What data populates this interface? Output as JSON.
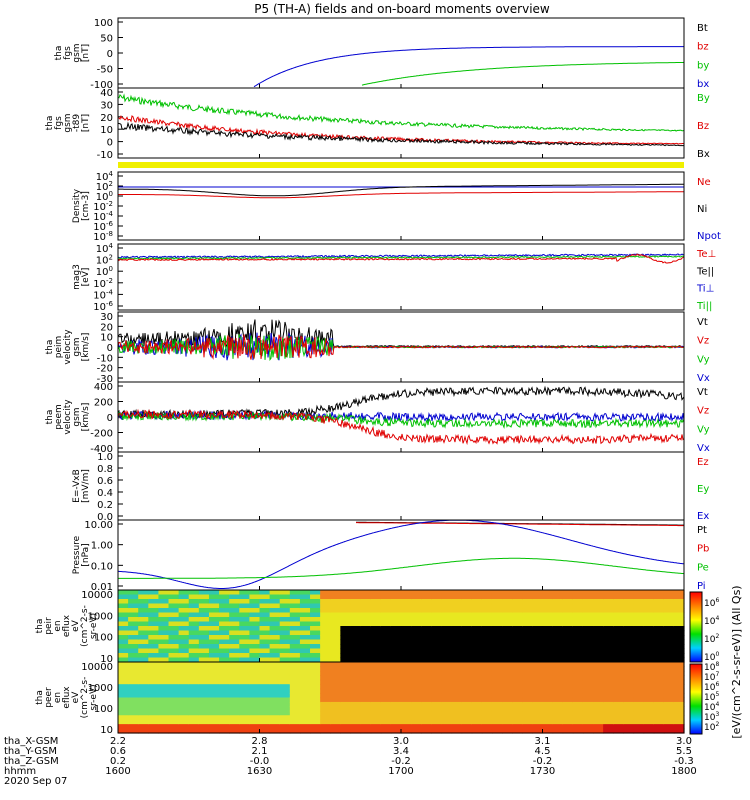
{
  "title": "P5 (TH-A) fields and on-board moments overview",
  "colorbar": {
    "label": "[eV/(cm^2-s-sr-eV)] (All Qs)",
    "ticks_top": [
      "10^6",
      "10^4",
      "10^2",
      "10^0"
    ],
    "ticks_bottom": [
      "10^8",
      "10^7",
      "10^6",
      "10^5",
      "10^4",
      "10^3",
      "10^2"
    ]
  },
  "chart_data": {
    "type": "line",
    "x_ticks": [
      "1600",
      "1630",
      "1700",
      "1730",
      "1800"
    ],
    "footer_rows": [
      {
        "label": "tha_X-GSM",
        "values": [
          "2.2",
          "2.8",
          "3.0",
          "3.1",
          "3.0"
        ]
      },
      {
        "label": "tha_Y-GSM",
        "values": [
          "0.6",
          "2.1",
          "3.4",
          "4.5",
          "5.5"
        ]
      },
      {
        "label": "tha_Z-GSM",
        "values": [
          "0.2",
          "-0.0",
          "-0.2",
          "-0.2",
          "-0.3"
        ]
      },
      {
        "label": "hhmm",
        "values": [
          "",
          "",
          "",
          "",
          ""
        ]
      }
    ],
    "date": "2020 Sep 07",
    "panels": [
      {
        "ylabel": [
          "tha",
          "fgs",
          "gsm",
          "[nT]"
        ],
        "yticks": [
          "100",
          "50",
          "0",
          "-50",
          "-100"
        ],
        "legend": [
          {
            "name": "Bt",
            "color": "#000000"
          },
          {
            "name": "bz",
            "color": "#e00000"
          },
          {
            "name": "by",
            "color": "#00c000"
          },
          {
            "name": "bx",
            "color": "#0000d0"
          }
        ]
      },
      {
        "ylabel": [
          "tha",
          "fgs",
          "gsm",
          "-t89",
          "[nT]"
        ],
        "yticks": [
          "40",
          "30",
          "20",
          "10",
          "0",
          "-10"
        ],
        "legend": [
          {
            "name": "By",
            "color": "#00c000"
          },
          {
            "name": "Bz",
            "color": "#e00000"
          },
          {
            "name": "Bx",
            "color": "#000000"
          }
        ]
      },
      {
        "ylabel": [
          "Density",
          "[cm-3]"
        ],
        "yticks": [
          "10^4",
          "10^2",
          "10^0",
          "10^-2",
          "10^-4",
          "10^-6",
          "10^-8"
        ],
        "legend": [
          {
            "name": "Ne",
            "color": "#e00000"
          },
          {
            "name": "Ni",
            "color": "#000000"
          },
          {
            "name": "Npot",
            "color": "#0000d0"
          }
        ]
      },
      {
        "ylabel": [
          "mag3",
          "[eV]"
        ],
        "yticks": [
          "10^4",
          "10^2",
          "10^0",
          "10^-2",
          "10^-4",
          "10^-6"
        ],
        "legend": [
          {
            "name": "Te⊥",
            "color": "#e00000"
          },
          {
            "name": "Te||",
            "color": "#000000"
          },
          {
            "name": "Ti⊥",
            "color": "#0000d0"
          },
          {
            "name": "Ti||",
            "color": "#00c000"
          }
        ]
      },
      {
        "ylabel": [
          "tha",
          "peim",
          "velocity",
          "gsm",
          "[km/s]"
        ],
        "yticks": [
          "30",
          "20",
          "10",
          "0",
          "-10",
          "-20",
          "-30"
        ],
        "legend": [
          {
            "name": "Vt",
            "color": "#000000"
          },
          {
            "name": "Vz",
            "color": "#e00000"
          },
          {
            "name": "Vy",
            "color": "#00c000"
          },
          {
            "name": "Vx",
            "color": "#0000d0"
          }
        ]
      },
      {
        "ylabel": [
          "tha",
          "peem",
          "velocity",
          "gsm",
          "[km/s]"
        ],
        "yticks": [
          "400",
          "200",
          "0",
          "-200",
          "-400"
        ],
        "legend": [
          {
            "name": "Vt",
            "color": "#000000"
          },
          {
            "name": "Vz",
            "color": "#e00000"
          },
          {
            "name": "Vy",
            "color": "#00c000"
          },
          {
            "name": "Vx",
            "color": "#0000d0"
          }
        ]
      },
      {
        "ylabel": [
          "E=-VxB",
          "[mV/m]"
        ],
        "yticks": [
          "1.0",
          "0.8",
          "0.6",
          "0.4",
          "0.2",
          "0.0"
        ],
        "legend": [
          {
            "name": "Ez",
            "color": "#e00000"
          },
          {
            "name": "Ey",
            "color": "#00c000"
          },
          {
            "name": "Ex",
            "color": "#0000d0"
          }
        ]
      },
      {
        "ylabel": [
          "Pressure",
          "[nPa]"
        ],
        "yticks": [
          "10.00",
          "1.00",
          "0.10",
          "0.01"
        ],
        "legend": [
          {
            "name": "Pt",
            "color": "#000000"
          },
          {
            "name": "Pb",
            "color": "#e00000"
          },
          {
            "name": "Pe",
            "color": "#00c000"
          },
          {
            "name": "Pi",
            "color": "#0000d0"
          }
        ]
      },
      {
        "ylabel": [
          "tha",
          "peir",
          "en",
          "eflux",
          "eV",
          "(cm^2-s-",
          "sr-eV)"
        ],
        "yticks": [
          "10000",
          "1000",
          "100",
          "10"
        ],
        "legend": []
      },
      {
        "ylabel": [
          "tha",
          "peer",
          "en",
          "eflux",
          "eV",
          "(cm^2-s-",
          "sr-eV)"
        ],
        "yticks": [
          "10000",
          "1000",
          "100",
          "10"
        ],
        "legend": []
      }
    ]
  }
}
